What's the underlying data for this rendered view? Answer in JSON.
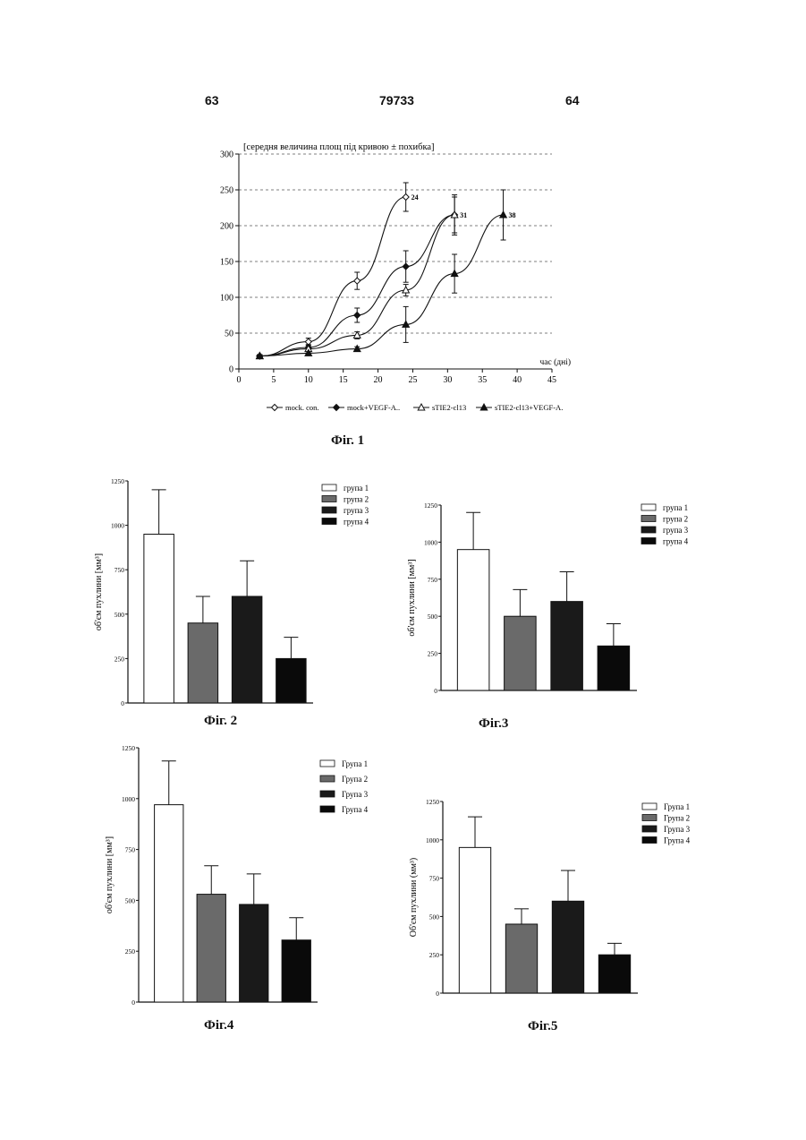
{
  "header": {
    "page_left": "63",
    "patent_number": "79733",
    "page_right": "64"
  },
  "chart_data": [
    {
      "id": "fig1",
      "type": "line",
      "caption": "Фіг. 1",
      "title": "[середня величина площ під кривою ± похибка]",
      "xlabel": "час (дні)",
      "ylabel": "",
      "xlim": [
        0,
        45
      ],
      "ylim": [
        0,
        300
      ],
      "xticks": [
        0,
        5,
        10,
        15,
        20,
        25,
        30,
        35,
        40,
        45
      ],
      "yticks": [
        0,
        50,
        100,
        150,
        200,
        250,
        300
      ],
      "grid": true,
      "legend_position": "bottom",
      "series": [
        {
          "name": "mock. con.",
          "marker": "diamond-open",
          "x": [
            3,
            10,
            17,
            24
          ],
          "y": [
            18,
            38,
            123,
            240
          ],
          "err": [
            2,
            5,
            12,
            20
          ],
          "end_label": "24"
        },
        {
          "name": "mock+VEGF-A..",
          "marker": "diamond-filled",
          "x": [
            3,
            10,
            17,
            24,
            31
          ],
          "y": [
            18,
            30,
            75,
            143,
            215
          ],
          "err": [
            2,
            4,
            10,
            22,
            25
          ],
          "end_label": ""
        },
        {
          "name": "sTIE2-cl13",
          "marker": "triangle-open",
          "x": [
            3,
            10,
            17,
            24,
            31
          ],
          "y": [
            18,
            28,
            47,
            110,
            215
          ],
          "err": [
            2,
            3,
            5,
            8,
            28
          ],
          "end_label": "31"
        },
        {
          "name": "sTIE2-cl13+VEGF-A.",
          "marker": "triangle-filled",
          "x": [
            3,
            10,
            17,
            24,
            31,
            38
          ],
          "y": [
            18,
            22,
            28,
            62,
            133,
            215
          ],
          "err": [
            2,
            2,
            3,
            25,
            27,
            35
          ],
          "end_label": "38"
        }
      ]
    },
    {
      "id": "fig2",
      "type": "bar",
      "caption": "Фіг. 2",
      "ylabel": "об'єм пухлини [мм³]",
      "ylim": [
        0,
        1250
      ],
      "yticks": [
        0,
        250,
        500,
        750,
        1000,
        1250
      ],
      "categories": [
        "група 1",
        "група 2",
        "група 3",
        "група 4"
      ],
      "values": [
        950,
        450,
        600,
        250
      ],
      "err": [
        250,
        150,
        200,
        120
      ]
    },
    {
      "id": "fig3",
      "type": "bar",
      "caption": "Фіг.3",
      "ylabel": "об'єм пухлини [мм³]",
      "ylim": [
        0,
        1250
      ],
      "yticks": [
        0,
        250,
        500,
        750,
        1000,
        1250
      ],
      "categories": [
        "група 1",
        "група 2",
        "група 3",
        "група 4"
      ],
      "values": [
        950,
        500,
        600,
        300
      ],
      "err": [
        250,
        180,
        200,
        150
      ]
    },
    {
      "id": "fig4",
      "type": "bar",
      "caption": "Фіг.4",
      "ylabel": "об'єм пухлини [мм³]",
      "ylim": [
        0,
        1250
      ],
      "yticks": [
        0,
        250,
        500,
        750,
        1000,
        1250
      ],
      "categories": [
        "Група 1",
        "Група 2",
        "Група 3",
        "Група 4"
      ],
      "values": [
        970,
        530,
        480,
        305
      ],
      "err": [
        215,
        140,
        150,
        110
      ]
    },
    {
      "id": "fig5",
      "type": "bar",
      "caption": "Фіг.5",
      "ylabel": "Об'єм пухлини (мм³)",
      "ylim": [
        0,
        1250
      ],
      "yticks": [
        0,
        250,
        500,
        750,
        1000,
        1250
      ],
      "categories": [
        "Група 1",
        "Група 2",
        "Група 3",
        "Група 4"
      ],
      "values": [
        950,
        450,
        600,
        250
      ],
      "err": [
        200,
        100,
        200,
        75
      ]
    }
  ],
  "colors": {
    "bar_fills": [
      "#ffffff",
      "#6a6a6a",
      "#1a1a1a",
      "#0a0a0a"
    ],
    "ink": "#111111"
  }
}
